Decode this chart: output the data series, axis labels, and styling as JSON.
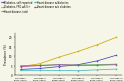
{
  "x_positions": [
    0,
    1,
    2,
    3,
    4,
    5
  ],
  "series": [
    {
      "label": "Diabetes, self-reported",
      "color": "#4444bb",
      "marker": "s",
      "values": [
        3.0,
        3.5,
        4.5,
        5.5,
        7.5,
        10.5
      ]
    },
    {
      "label": "Diabetes, FPG ≥6.5+",
      "color": "#ccaa00",
      "marker": "s",
      "values": [
        4.5,
        6.0,
        9.5,
        12.5,
        16.0,
        20.0
      ]
    },
    {
      "label": "Heart disease, total",
      "color": "#44bb44",
      "marker": "s",
      "values": [
        5.0,
        5.2,
        5.5,
        5.3,
        5.5,
        5.8
      ]
    },
    {
      "label": "Heart disease w/diabetes",
      "color": "#44bbbb",
      "marker": "s",
      "values": [
        2.5,
        2.5,
        2.5,
        2.3,
        2.8,
        3.2
      ]
    },
    {
      "label": "Heart disease w/o diabetes",
      "color": "#aa44aa",
      "marker": "s",
      "values": [
        4.5,
        5.0,
        5.5,
        5.2,
        5.2,
        5.5
      ]
    }
  ],
  "xtick_labels": [
    "NHANES I\n(1971-1975)",
    "NHANES II\n(1976-1980)",
    "NHANES III\n(1988-1994)",
    "NHANES IV\n(1999-2004)",
    "NHANES V\n(2005-2010)",
    "NHANES VI\n(2011-2018)"
  ],
  "ylabel": "Prevalence (%)",
  "ylim": [
    0,
    22
  ],
  "yticks": [
    0,
    5,
    10,
    15,
    20
  ],
  "background_color": "#f5f5e8",
  "legend_ncol": 2
}
